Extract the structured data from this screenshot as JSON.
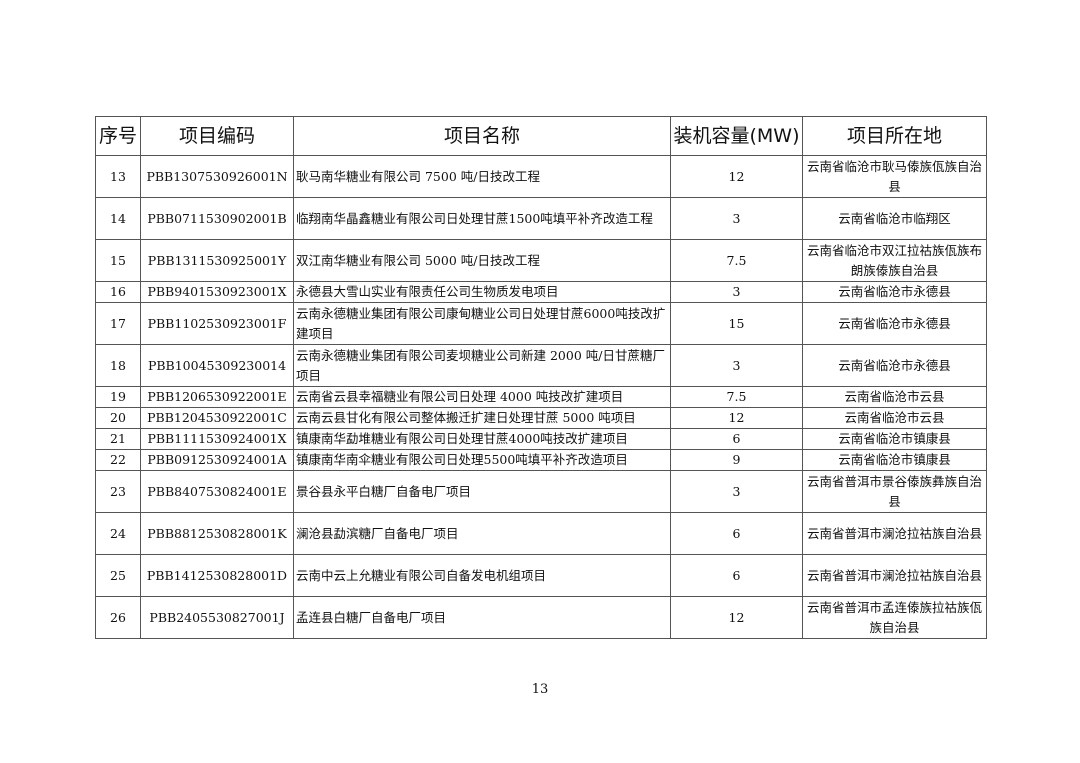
{
  "table": {
    "headers": [
      "序号",
      "项目编码",
      "项目名称",
      "装机容量(MW)",
      "项目所在地"
    ],
    "rows": [
      {
        "no": "13",
        "code": "PBB130753092600​1N",
        "name": "耿马南华糖业有限公司 7500 吨/日技改工程",
        "capacity": "12",
        "location": "云南省临沧市耿马傣族佤族自治县",
        "tall": true
      },
      {
        "no": "14",
        "code": "PBB0711530902001B",
        "name": "临翔南华晶鑫糖业有限公司日处理甘蔗1500吨填平补齐改造工程",
        "capacity": "3",
        "location": "云南省临沧市临翔区",
        "tall": true
      },
      {
        "no": "15",
        "code": "PBB1311530925001Y",
        "name": "双江南华糖业有限公司 5000 吨/日技改工程",
        "capacity": "7.5",
        "location": "云南省临沧市双江拉祜族佤族布朗族傣族自治县",
        "tall": true
      },
      {
        "no": "16",
        "code": "PBB9401530923001X",
        "name": "永德县大雪山实业有限责任公司生物质发电项目",
        "capacity": "3",
        "location": "云南省临沧市永德县",
        "tall": false
      },
      {
        "no": "17",
        "code": "PBB1102530923001F",
        "name": "云南永德糖业集团有限公司康甸糖业公司日处理甘蔗6000吨技改扩建项目",
        "capacity": "15",
        "location": "云南省临沧市永德县",
        "tall": true
      },
      {
        "no": "18",
        "code": "PBB10045309230014",
        "name": "云南永德糖业集团有限公司麦坝糖业公司新建 2000 吨/日甘蔗糖厂项目",
        "capacity": "3",
        "location": "云南省临沧市永德县",
        "tall": true
      },
      {
        "no": "19",
        "code": "PBB1206530922001E",
        "name": "云南省云县幸福糖业有限公司日处理 4000 吨技改扩建项目",
        "capacity": "7.5",
        "location": "云南省临沧市云县",
        "tall": false
      },
      {
        "no": "20",
        "code": "PBB1204530922001C",
        "name": "云南云县甘化有限公司整体搬迁扩建日处理甘蔗 5000 吨项目",
        "capacity": "12",
        "location": "云南省临沧市云县",
        "tall": false
      },
      {
        "no": "21",
        "code": "PBB1111530924001X",
        "name": "镇康南华勐堆糖业有限公司日处理甘蔗4000吨技改扩建项目",
        "capacity": "6",
        "location": "云南省临沧市镇康县",
        "tall": false
      },
      {
        "no": "22",
        "code": "PBB0912530924001A",
        "name": "镇康南华南伞糖业有限公司日处理5500吨填平补齐改造项目",
        "capacity": "9",
        "location": "云南省临沧市镇康县",
        "tall": false
      },
      {
        "no": "23",
        "code": "PBB8407530824001E",
        "name": "景谷县永平白糖厂自备电厂项目",
        "capacity": "3",
        "location": "云南省普洱市景谷傣族彝族自治县",
        "tall": true
      },
      {
        "no": "24",
        "code": "PBB8812530828001K",
        "name": "澜沧县勐滨糖厂自备电厂项目",
        "capacity": "6",
        "location": "云南省普洱市澜沧拉祜族自治县",
        "tall": true
      },
      {
        "no": "25",
        "code": "PBB1412530828001D",
        "name": "云南中云上允糖业有限公司自备发电机组项目",
        "capacity": "6",
        "location": "云南省普洱市澜沧拉祜族自治县",
        "tall": true
      },
      {
        "no": "26",
        "code": "PBB2405530827001J",
        "name": "孟连县白糖厂自备电厂项目",
        "capacity": "12",
        "location": "云南省普洱市孟连傣族拉祜族佤族自治县",
        "tall": true
      }
    ]
  },
  "page_number": "13"
}
